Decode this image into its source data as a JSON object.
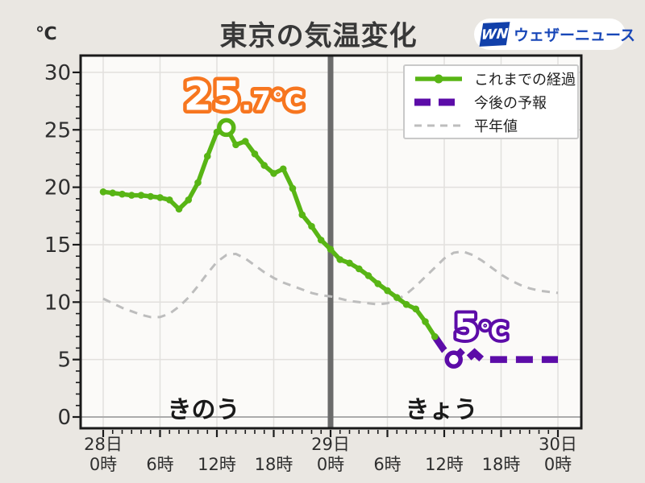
{
  "header": {
    "unit": "℃",
    "title": "東京の気温変化",
    "logo": {
      "mark_text": "WN",
      "brand_text": "ウェザーニュース",
      "mark_bg": "#1140aa",
      "brand_color": "#1847b8"
    }
  },
  "chart_data": {
    "type": "line",
    "title": "東京の気温変化",
    "x_axis": {
      "range_hours": [
        0,
        48
      ],
      "ticks": [
        {
          "hour": 0,
          "day": "28日",
          "time": "0時"
        },
        {
          "hour": 6,
          "time": "6時"
        },
        {
          "hour": 12,
          "time": "12時"
        },
        {
          "hour": 18,
          "time": "18時"
        },
        {
          "hour": 24,
          "day": "29日",
          "time": "0時"
        },
        {
          "hour": 30,
          "time": "6時"
        },
        {
          "hour": 36,
          "time": "12時"
        },
        {
          "hour": 42,
          "time": "18時"
        },
        {
          "hour": 48,
          "day": "30日",
          "time": "0時"
        }
      ]
    },
    "y_axis": {
      "unit": "℃",
      "min": 0,
      "max": 30,
      "tick_step": 5,
      "ticks": [
        0,
        5,
        10,
        15,
        20,
        25,
        30
      ]
    },
    "series": [
      {
        "key": "observed",
        "name": "これまでの経過",
        "color": "#58b515",
        "style": "solid",
        "markers": true,
        "points": [
          [
            0,
            19.6
          ],
          [
            1,
            19.5
          ],
          [
            2,
            19.4
          ],
          [
            3,
            19.3
          ],
          [
            4,
            19.3
          ],
          [
            5,
            19.2
          ],
          [
            6,
            19.1
          ],
          [
            7,
            18.9
          ],
          [
            8,
            18.1
          ],
          [
            9,
            18.9
          ],
          [
            10,
            20.4
          ],
          [
            11,
            22.7
          ],
          [
            12,
            24.8
          ],
          [
            13,
            25.2
          ],
          [
            14,
            23.7
          ],
          [
            15,
            24.0
          ],
          [
            16,
            22.9
          ],
          [
            17,
            21.9
          ],
          [
            18,
            21.2
          ],
          [
            19,
            21.6
          ],
          [
            20,
            19.9
          ],
          [
            21,
            17.6
          ],
          [
            22,
            16.6
          ],
          [
            23,
            15.4
          ],
          [
            24,
            14.6
          ],
          [
            25,
            13.7
          ],
          [
            26,
            13.4
          ],
          [
            27,
            12.9
          ],
          [
            28,
            12.3
          ],
          [
            29,
            11.6
          ],
          [
            30,
            11.0
          ],
          [
            31,
            10.4
          ],
          [
            32,
            9.8
          ],
          [
            33,
            9.4
          ],
          [
            34,
            8.3
          ],
          [
            35,
            7.0
          ]
        ]
      },
      {
        "key": "forecast",
        "name": "今後の予報",
        "color": "#5c0ca8",
        "style": "dashed-thick",
        "markers": false,
        "points": [
          [
            35,
            7.0
          ],
          [
            36,
            5.8
          ],
          [
            37,
            5.0
          ],
          [
            37.7,
            5.6
          ],
          [
            38.4,
            5.0
          ],
          [
            39.2,
            5.6
          ],
          [
            40,
            5.0
          ],
          [
            48,
            5.0
          ]
        ]
      },
      {
        "key": "normal",
        "name": "平年値",
        "color": "#bdbdbd",
        "style": "dashed-thin",
        "markers": false,
        "points": [
          [
            0,
            10.3
          ],
          [
            1,
            9.9
          ],
          [
            2,
            9.5
          ],
          [
            3,
            9.2
          ],
          [
            4,
            8.9
          ],
          [
            5,
            8.7
          ],
          [
            6,
            8.7
          ],
          [
            7,
            9.0
          ],
          [
            8,
            9.6
          ],
          [
            9,
            10.4
          ],
          [
            10,
            11.4
          ],
          [
            11,
            12.5
          ],
          [
            12,
            13.5
          ],
          [
            13,
            14.1
          ],
          [
            14,
            14.2
          ],
          [
            15,
            13.8
          ],
          [
            16,
            13.2
          ],
          [
            17,
            12.6
          ],
          [
            18,
            12.1
          ],
          [
            19,
            11.7
          ],
          [
            20,
            11.4
          ],
          [
            21,
            11.1
          ],
          [
            22,
            10.8
          ],
          [
            23,
            10.6
          ],
          [
            24,
            10.5
          ],
          [
            25,
            10.3
          ],
          [
            26,
            10.1
          ],
          [
            27,
            10.0
          ],
          [
            28,
            9.9
          ],
          [
            29,
            9.8
          ],
          [
            30,
            9.9
          ],
          [
            31,
            10.2
          ],
          [
            32,
            10.7
          ],
          [
            33,
            11.4
          ],
          [
            34,
            12.2
          ],
          [
            35,
            13.0
          ],
          [
            36,
            13.8
          ],
          [
            37,
            14.3
          ],
          [
            38,
            14.4
          ],
          [
            39,
            14.1
          ],
          [
            40,
            13.6
          ],
          [
            41,
            13.0
          ],
          [
            42,
            12.4
          ],
          [
            43,
            11.9
          ],
          [
            44,
            11.5
          ],
          [
            45,
            11.2
          ],
          [
            46,
            11.0
          ],
          [
            47,
            10.9
          ],
          [
            48,
            10.8
          ]
        ]
      }
    ],
    "annotations": {
      "peak_label": {
        "text": "25.7℃",
        "main": "25",
        "sub": ".7℃",
        "hour": 13,
        "temp": 25.2,
        "color": "#f7761f"
      },
      "forecast_label": {
        "text": "5℃",
        "main": "5",
        "sub": "℃",
        "hour": 37,
        "temp": 5.0,
        "color": "#5c0ca8"
      },
      "divider_hour": 24,
      "period_labels": [
        {
          "key": "yesterday",
          "text": "きのう",
          "hour": 10.6
        },
        {
          "key": "today",
          "text": "きょう",
          "hour": 35.7
        }
      ]
    },
    "legend": {
      "position": "top-right",
      "items": [
        {
          "key": "observed",
          "label": "これまでの経過"
        },
        {
          "key": "forecast",
          "label": "今後の予報"
        },
        {
          "key": "normal",
          "label": "平年値"
        }
      ]
    }
  },
  "colors": {
    "background": "#eae7e2",
    "plot_bg": "#fbfaf8",
    "grid": "#e2e0dd",
    "zero_line": "#ababab",
    "divider": "#6b6b6b",
    "frame": "#1a1a1a",
    "tick_label": "#2e2e2e",
    "title": "#383838"
  }
}
